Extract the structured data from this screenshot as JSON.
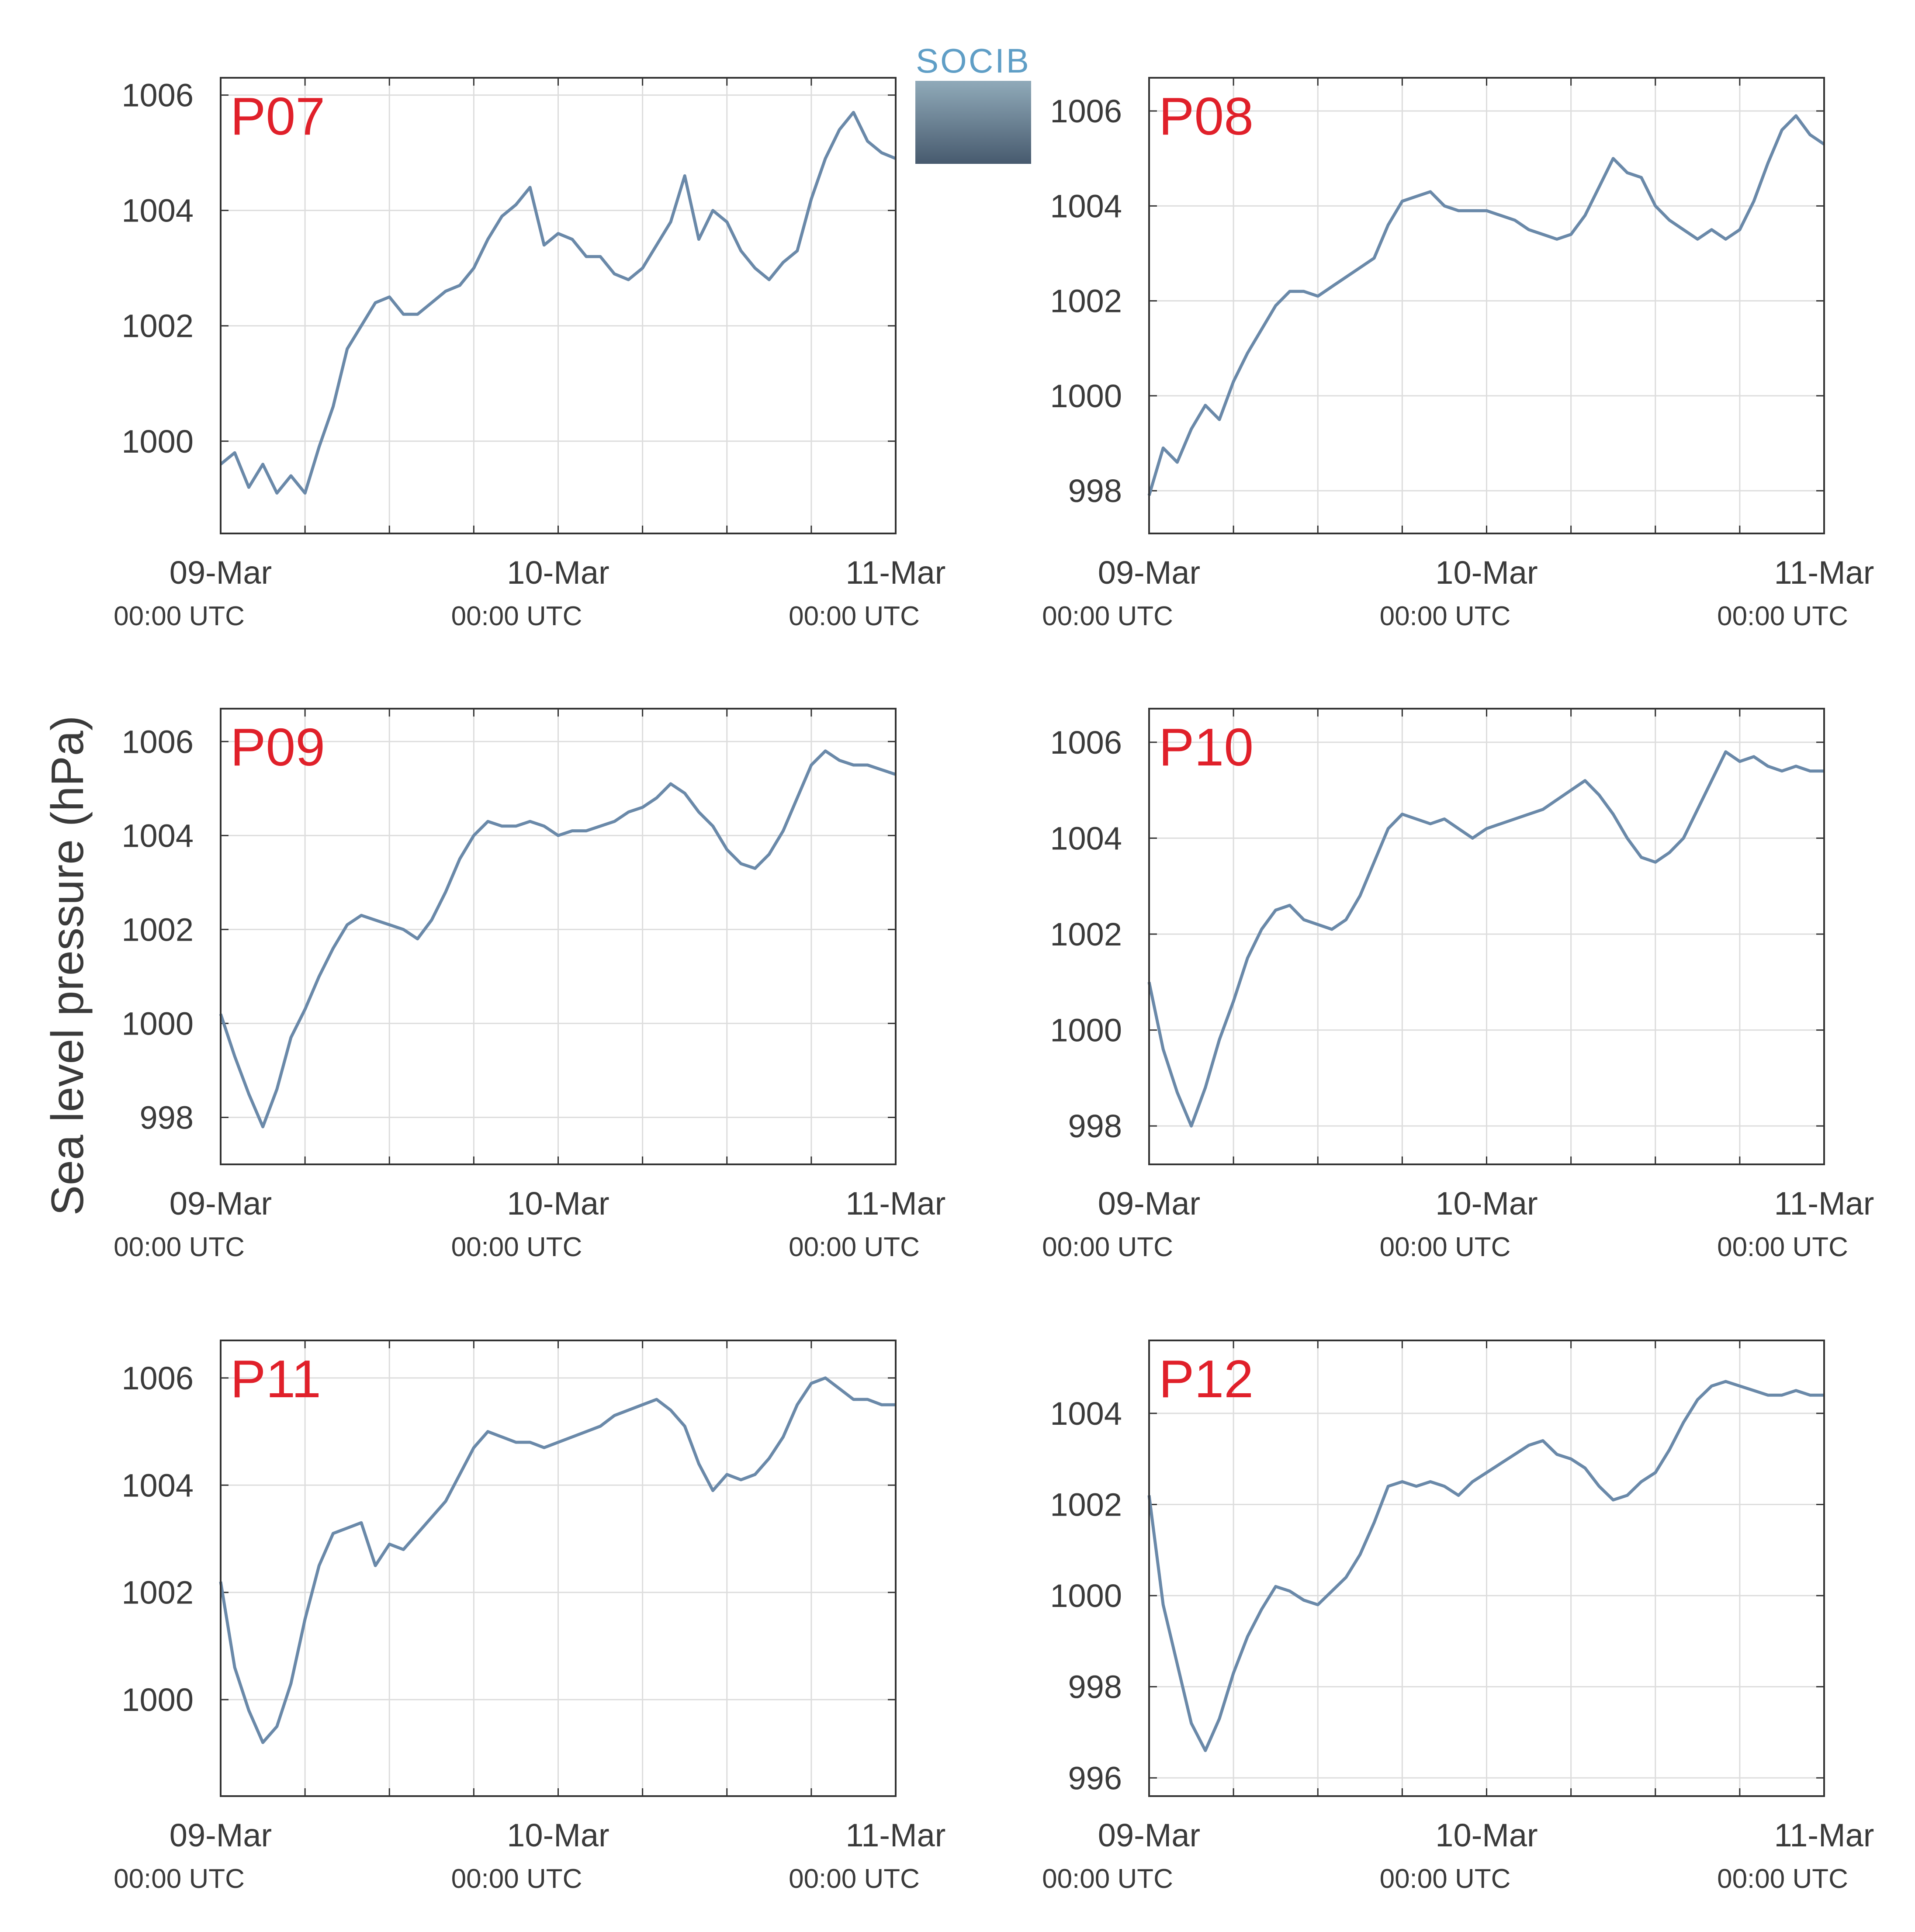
{
  "logo_text": "SOCIB",
  "ylabel": "Sea level pressure (hPa)",
  "colors": {
    "line": "#6a89a9",
    "panel_label": "#e0202a",
    "axis": "#333333",
    "grid": "#dddddd",
    "text": "#3a3a3a"
  },
  "x_ticks": [
    {
      "date": "09-Mar",
      "time": "00:00 UTC"
    },
    {
      "date": "10-Mar",
      "time": "00:00 UTC"
    },
    {
      "date": "11-Mar",
      "time": "00:00 UTC"
    }
  ],
  "chart_data": [
    {
      "type": "line",
      "title": "P07",
      "x_range": [
        "2024-03-09T00:00",
        "2024-03-11T00:00"
      ],
      "ylim": [
        998.4,
        1006.3
      ],
      "yticks": [
        1000,
        1002,
        1004,
        1006
      ],
      "x": [
        "03-09 00:00",
        "03-09 01:00",
        "03-09 02:00",
        "03-09 03:00",
        "03-09 04:00",
        "03-09 05:00",
        "03-09 06:00",
        "03-09 07:00",
        "03-09 08:00",
        "03-09 09:00",
        "03-09 10:00",
        "03-09 11:00",
        "03-09 12:00",
        "03-09 13:00",
        "03-09 14:00",
        "03-09 15:00",
        "03-09 16:00",
        "03-09 17:00",
        "03-09 18:00",
        "03-09 19:00",
        "03-09 20:00",
        "03-09 21:00",
        "03-09 22:00",
        "03-09 23:00",
        "03-10 00:00",
        "03-10 01:00",
        "03-10 02:00",
        "03-10 03:00",
        "03-10 04:00",
        "03-10 05:00",
        "03-10 06:00",
        "03-10 07:00",
        "03-10 08:00",
        "03-10 09:00",
        "03-10 10:00",
        "03-10 11:00",
        "03-10 12:00",
        "03-10 13:00",
        "03-10 14:00",
        "03-10 15:00",
        "03-10 16:00",
        "03-10 17:00",
        "03-10 18:00",
        "03-10 19:00",
        "03-10 20:00",
        "03-10 21:00",
        "03-10 22:00",
        "03-10 23:00",
        "03-11 00:00"
      ],
      "values": [
        999.6,
        999.8,
        999.2,
        999.6,
        999.1,
        999.4,
        999.1,
        999.9,
        1000.6,
        1001.6,
        1002.0,
        1002.4,
        1002.5,
        1002.2,
        1002.2,
        1002.4,
        1002.6,
        1002.7,
        1003.0,
        1003.5,
        1003.9,
        1004.1,
        1004.4,
        1003.4,
        1003.6,
        1003.5,
        1003.2,
        1003.2,
        1002.9,
        1002.8,
        1003.0,
        1003.4,
        1003.8,
        1004.6,
        1003.5,
        1004.0,
        1003.8,
        1003.3,
        1003.0,
        1002.8,
        1003.1,
        1003.3,
        1004.2,
        1004.9,
        1005.4,
        1005.7,
        1005.2,
        1005.0,
        1004.9
      ]
    },
    {
      "type": "line",
      "title": "P08",
      "x_range": [
        "2024-03-09T00:00",
        "2024-03-11T00:00"
      ],
      "ylim": [
        997.1,
        1006.7
      ],
      "yticks": [
        998,
        1000,
        1002,
        1004,
        1006
      ],
      "x": [
        "03-09 00:00",
        "03-09 01:00",
        "03-09 02:00",
        "03-09 03:00",
        "03-09 04:00",
        "03-09 05:00",
        "03-09 06:00",
        "03-09 07:00",
        "03-09 08:00",
        "03-09 09:00",
        "03-09 10:00",
        "03-09 11:00",
        "03-09 12:00",
        "03-09 13:00",
        "03-09 14:00",
        "03-09 15:00",
        "03-09 16:00",
        "03-09 17:00",
        "03-09 18:00",
        "03-09 19:00",
        "03-09 20:00",
        "03-09 21:00",
        "03-09 22:00",
        "03-09 23:00",
        "03-10 00:00",
        "03-10 01:00",
        "03-10 02:00",
        "03-10 03:00",
        "03-10 04:00",
        "03-10 05:00",
        "03-10 06:00",
        "03-10 07:00",
        "03-10 08:00",
        "03-10 09:00",
        "03-10 10:00",
        "03-10 11:00",
        "03-10 12:00",
        "03-10 13:00",
        "03-10 14:00",
        "03-10 15:00",
        "03-10 16:00",
        "03-10 17:00",
        "03-10 18:00",
        "03-10 19:00",
        "03-10 20:00",
        "03-10 21:00",
        "03-10 22:00",
        "03-10 23:00",
        "03-11 00:00"
      ],
      "values": [
        997.9,
        998.9,
        998.6,
        999.3,
        999.8,
        999.5,
        1000.3,
        1000.9,
        1001.4,
        1001.9,
        1002.2,
        1002.2,
        1002.1,
        1002.3,
        1002.5,
        1002.7,
        1002.9,
        1003.6,
        1004.1,
        1004.2,
        1004.3,
        1004.0,
        1003.9,
        1003.9,
        1003.9,
        1003.8,
        1003.7,
        1003.5,
        1003.4,
        1003.3,
        1003.4,
        1003.8,
        1004.4,
        1005.0,
        1004.7,
        1004.6,
        1004.0,
        1003.7,
        1003.5,
        1003.3,
        1003.5,
        1003.3,
        1003.5,
        1004.1,
        1004.9,
        1005.6,
        1005.9,
        1005.5,
        1005.3
      ]
    },
    {
      "type": "line",
      "title": "P09",
      "x_range": [
        "2024-03-09T00:00",
        "2024-03-11T00:00"
      ],
      "ylim": [
        997.0,
        1006.7
      ],
      "yticks": [
        998,
        1000,
        1002,
        1004,
        1006
      ],
      "x": [
        "03-09 00:00",
        "03-09 01:00",
        "03-09 02:00",
        "03-09 03:00",
        "03-09 04:00",
        "03-09 05:00",
        "03-09 06:00",
        "03-09 07:00",
        "03-09 08:00",
        "03-09 09:00",
        "03-09 10:00",
        "03-09 11:00",
        "03-09 12:00",
        "03-09 13:00",
        "03-09 14:00",
        "03-09 15:00",
        "03-09 16:00",
        "03-09 17:00",
        "03-09 18:00",
        "03-09 19:00",
        "03-09 20:00",
        "03-09 21:00",
        "03-09 22:00",
        "03-09 23:00",
        "03-10 00:00",
        "03-10 01:00",
        "03-10 02:00",
        "03-10 03:00",
        "03-10 04:00",
        "03-10 05:00",
        "03-10 06:00",
        "03-10 07:00",
        "03-10 08:00",
        "03-10 09:00",
        "03-10 10:00",
        "03-10 11:00",
        "03-10 12:00",
        "03-10 13:00",
        "03-10 14:00",
        "03-10 15:00",
        "03-10 16:00",
        "03-10 17:00",
        "03-10 18:00",
        "03-10 19:00",
        "03-10 20:00",
        "03-10 21:00",
        "03-10 22:00",
        "03-10 23:00",
        "03-11 00:00"
      ],
      "values": [
        1000.2,
        999.3,
        998.5,
        997.8,
        998.6,
        999.7,
        1000.3,
        1001.0,
        1001.6,
        1002.1,
        1002.3,
        1002.2,
        1002.1,
        1002.0,
        1001.8,
        1002.2,
        1002.8,
        1003.5,
        1004.0,
        1004.3,
        1004.2,
        1004.2,
        1004.3,
        1004.2,
        1004.0,
        1004.1,
        1004.1,
        1004.2,
        1004.3,
        1004.5,
        1004.6,
        1004.8,
        1005.1,
        1004.9,
        1004.5,
        1004.2,
        1003.7,
        1003.4,
        1003.3,
        1003.6,
        1004.1,
        1004.8,
        1005.5,
        1005.8,
        1005.6,
        1005.5,
        1005.5,
        1005.4,
        1005.3
      ]
    },
    {
      "type": "line",
      "title": "P10",
      "x_range": [
        "2024-03-09T00:00",
        "2024-03-11T00:00"
      ],
      "ylim": [
        997.2,
        1006.7
      ],
      "yticks": [
        998,
        1000,
        1002,
        1004,
        1006
      ],
      "x": [
        "03-09 00:00",
        "03-09 01:00",
        "03-09 02:00",
        "03-09 03:00",
        "03-09 04:00",
        "03-09 05:00",
        "03-09 06:00",
        "03-09 07:00",
        "03-09 08:00",
        "03-09 09:00",
        "03-09 10:00",
        "03-09 11:00",
        "03-09 12:00",
        "03-09 13:00",
        "03-09 14:00",
        "03-09 15:00",
        "03-09 16:00",
        "03-09 17:00",
        "03-09 18:00",
        "03-09 19:00",
        "03-09 20:00",
        "03-09 21:00",
        "03-09 22:00",
        "03-09 23:00",
        "03-10 00:00",
        "03-10 01:00",
        "03-10 02:00",
        "03-10 03:00",
        "03-10 04:00",
        "03-10 05:00",
        "03-10 06:00",
        "03-10 07:00",
        "03-10 08:00",
        "03-10 09:00",
        "03-10 10:00",
        "03-10 11:00",
        "03-10 12:00",
        "03-10 13:00",
        "03-10 14:00",
        "03-10 15:00",
        "03-10 16:00",
        "03-10 17:00",
        "03-10 18:00",
        "03-10 19:00",
        "03-10 20:00",
        "03-10 21:00",
        "03-10 22:00",
        "03-10 23:00",
        "03-11 00:00"
      ],
      "values": [
        1001.0,
        999.6,
        998.7,
        998.0,
        998.8,
        999.8,
        1000.6,
        1001.5,
        1002.1,
        1002.5,
        1002.6,
        1002.3,
        1002.2,
        1002.1,
        1002.3,
        1002.8,
        1003.5,
        1004.2,
        1004.5,
        1004.4,
        1004.3,
        1004.4,
        1004.2,
        1004.0,
        1004.2,
        1004.3,
        1004.4,
        1004.5,
        1004.6,
        1004.8,
        1005.0,
        1005.2,
        1004.9,
        1004.5,
        1004.0,
        1003.6,
        1003.5,
        1003.7,
        1004.0,
        1004.6,
        1005.2,
        1005.8,
        1005.6,
        1005.7,
        1005.5,
        1005.4,
        1005.5,
        1005.4,
        1005.4
      ]
    },
    {
      "type": "line",
      "title": "P11",
      "x_range": [
        "2024-03-09T00:00",
        "2024-03-11T00:00"
      ],
      "ylim": [
        998.2,
        1006.7
      ],
      "yticks": [
        1000,
        1002,
        1004,
        1006
      ],
      "x": [
        "03-09 00:00",
        "03-09 01:00",
        "03-09 02:00",
        "03-09 03:00",
        "03-09 04:00",
        "03-09 05:00",
        "03-09 06:00",
        "03-09 07:00",
        "03-09 08:00",
        "03-09 09:00",
        "03-09 10:00",
        "03-09 11:00",
        "03-09 12:00",
        "03-09 13:00",
        "03-09 14:00",
        "03-09 15:00",
        "03-09 16:00",
        "03-09 17:00",
        "03-09 18:00",
        "03-09 19:00",
        "03-09 20:00",
        "03-09 21:00",
        "03-09 22:00",
        "03-09 23:00",
        "03-10 00:00",
        "03-10 01:00",
        "03-10 02:00",
        "03-10 03:00",
        "03-10 04:00",
        "03-10 05:00",
        "03-10 06:00",
        "03-10 07:00",
        "03-10 08:00",
        "03-10 09:00",
        "03-10 10:00",
        "03-10 11:00",
        "03-10 12:00",
        "03-10 13:00",
        "03-10 14:00",
        "03-10 15:00",
        "03-10 16:00",
        "03-10 17:00",
        "03-10 18:00",
        "03-10 19:00",
        "03-10 20:00",
        "03-10 21:00",
        "03-10 22:00",
        "03-10 23:00",
        "03-11 00:00"
      ],
      "values": [
        1002.2,
        1000.6,
        999.8,
        999.2,
        999.5,
        1000.3,
        1001.5,
        1002.5,
        1003.1,
        1003.2,
        1003.3,
        1002.5,
        1002.9,
        1002.8,
        1003.1,
        1003.4,
        1003.7,
        1004.2,
        1004.7,
        1005.0,
        1004.9,
        1004.8,
        1004.8,
        1004.7,
        1004.8,
        1004.9,
        1005.0,
        1005.1,
        1005.3,
        1005.4,
        1005.5,
        1005.6,
        1005.4,
        1005.1,
        1004.4,
        1003.9,
        1004.2,
        1004.1,
        1004.2,
        1004.5,
        1004.9,
        1005.5,
        1005.9,
        1006.0,
        1005.8,
        1005.6,
        1005.6,
        1005.5,
        1005.5
      ]
    },
    {
      "type": "line",
      "title": "P12",
      "x_range": [
        "2024-03-09T00:00",
        "2024-03-11T00:00"
      ],
      "ylim": [
        995.6,
        1005.6
      ],
      "yticks": [
        996,
        998,
        1000,
        1002,
        1004
      ],
      "x": [
        "03-09 00:00",
        "03-09 01:00",
        "03-09 02:00",
        "03-09 03:00",
        "03-09 04:00",
        "03-09 05:00",
        "03-09 06:00",
        "03-09 07:00",
        "03-09 08:00",
        "03-09 09:00",
        "03-09 10:00",
        "03-09 11:00",
        "03-09 12:00",
        "03-09 13:00",
        "03-09 14:00",
        "03-09 15:00",
        "03-09 16:00",
        "03-09 17:00",
        "03-09 18:00",
        "03-09 19:00",
        "03-09 20:00",
        "03-09 21:00",
        "03-09 22:00",
        "03-09 23:00",
        "03-10 00:00",
        "03-10 01:00",
        "03-10 02:00",
        "03-10 03:00",
        "03-10 04:00",
        "03-10 05:00",
        "03-10 06:00",
        "03-10 07:00",
        "03-10 08:00",
        "03-10 09:00",
        "03-10 10:00",
        "03-10 11:00",
        "03-10 12:00",
        "03-10 13:00",
        "03-10 14:00",
        "03-10 15:00",
        "03-10 16:00",
        "03-10 17:00",
        "03-10 18:00",
        "03-10 19:00",
        "03-10 20:00",
        "03-10 21:00",
        "03-10 22:00",
        "03-10 23:00",
        "03-11 00:00"
      ],
      "values": [
        1002.2,
        999.8,
        998.5,
        997.2,
        996.6,
        997.3,
        998.3,
        999.1,
        999.7,
        1000.2,
        1000.1,
        999.9,
        999.8,
        1000.1,
        1000.4,
        1000.9,
        1001.6,
        1002.4,
        1002.5,
        1002.4,
        1002.5,
        1002.4,
        1002.2,
        1002.5,
        1002.7,
        1002.9,
        1003.1,
        1003.3,
        1003.4,
        1003.1,
        1003.0,
        1002.8,
        1002.4,
        1002.1,
        1002.2,
        1002.5,
        1002.7,
        1003.2,
        1003.8,
        1004.3,
        1004.6,
        1004.7,
        1004.6,
        1004.5,
        1004.4,
        1004.4,
        1004.5,
        1004.4,
        1004.4
      ]
    }
  ]
}
